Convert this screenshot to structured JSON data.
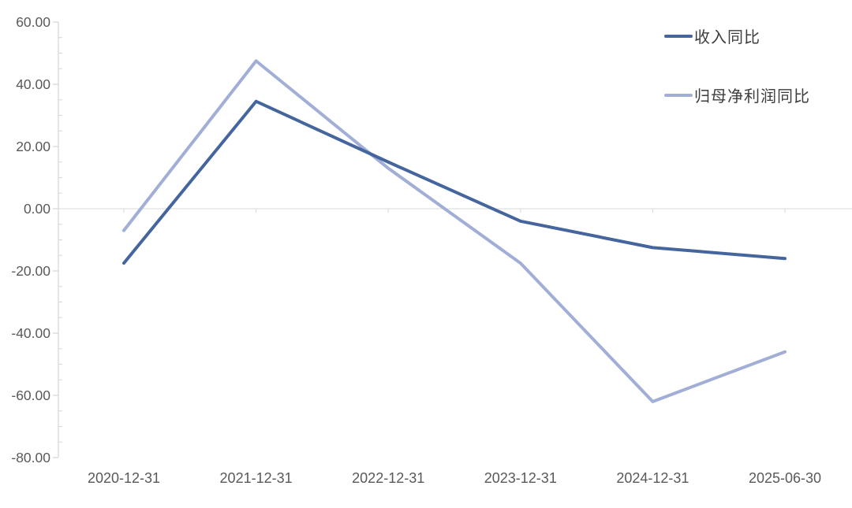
{
  "chart_data": {
    "type": "line",
    "title": "",
    "xlabel": "",
    "ylabel": "",
    "categories": [
      "2020-12-31",
      "2021-12-31",
      "2022-12-31",
      "2023-12-31",
      "2024-12-31",
      "2025-06-30"
    ],
    "series": [
      {
        "name": "收入同比",
        "color": "#44659D",
        "values": [
          -17.5,
          34.5,
          15.0,
          -4.0,
          -12.5,
          -16.0
        ]
      },
      {
        "name": "归母净利润同比",
        "color": "#A1AFD6",
        "values": [
          -7.0,
          47.5,
          13.0,
          -17.5,
          -62.0,
          -46.0
        ]
      }
    ],
    "ylim": [
      -80,
      60
    ],
    "y_major_step": 20,
    "y_minor_step": 5,
    "y_tick_labels": [
      "60.00",
      "40.00",
      "20.00",
      "0.00",
      "-20.00",
      "-40.00",
      "-60.00",
      "-80.00"
    ],
    "y_tick_decimals": 2,
    "grid": "zero-line-only",
    "legend_position": "top-right",
    "colors": {
      "axis": "#D6D6D6",
      "zero_line": "#D9D9D9",
      "tick_label": "#595959",
      "legend_text": "#3D3D3D",
      "background": "#FFFFFF"
    }
  }
}
